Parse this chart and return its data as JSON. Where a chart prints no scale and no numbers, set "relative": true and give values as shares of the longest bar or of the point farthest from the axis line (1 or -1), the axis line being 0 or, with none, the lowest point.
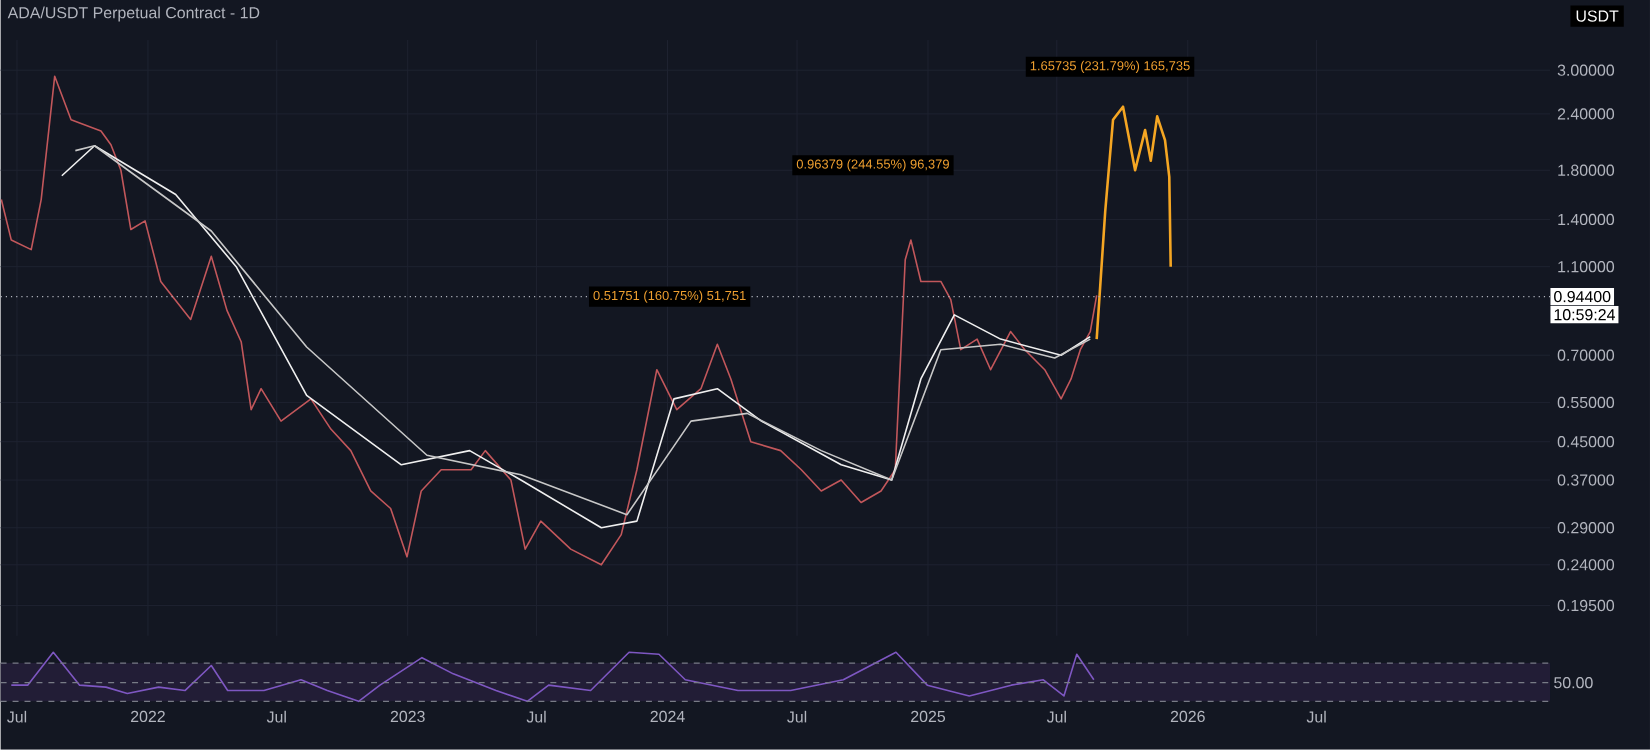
{
  "chart_data": [
    {
      "type": "line",
      "title": "ADA/USDT Perpetual Contract - 1D",
      "ylabel": "USDT",
      "log": true,
      "grid": true,
      "tick_labels": "y",
      "xlim": [
        "2021-06-08",
        "2027-05-25"
      ],
      "ylim": [
        0.167,
        3.5
      ],
      "xticks": [
        {
          "value": "2021-07",
          "label": null
        },
        {
          "value": "2022",
          "label": null
        },
        {
          "value": "2022-07",
          "label": null
        },
        {
          "value": "2023",
          "label": null
        },
        {
          "value": "2023-07",
          "label": null
        },
        {
          "value": "2024",
          "label": null
        },
        {
          "value": "2024-07",
          "label": null
        },
        {
          "value": "2025",
          "label": null
        },
        {
          "value": "2025-07",
          "label": null
        },
        {
          "value": "2026",
          "label": null
        },
        {
          "value": "2026-07",
          "label": null
        }
      ],
      "yticks": [
        {
          "value": 3,
          "label": "3.00000"
        },
        {
          "value": 2.4,
          "label": "2.40000"
        },
        {
          "value": 1.8,
          "label": "1.80000"
        },
        {
          "value": 1.4,
          "label": "1.40000"
        },
        {
          "value": 1.1,
          "label": "1.10000"
        },
        {
          "value": 0.7,
          "label": "0.70000"
        },
        {
          "value": 0.55,
          "label": "0.55000"
        },
        {
          "value": 0.45,
          "label": "0.45000"
        },
        {
          "value": 0.37,
          "label": "0.37000"
        },
        {
          "value": 0.29,
          "label": "0.29000"
        },
        {
          "value": 0.24,
          "label": "0.24000"
        },
        {
          "value": 0.195,
          "label": "0.19500"
        }
      ],
      "series": [
        {
          "color": "#c2575b",
          "x": [
            "2021-06-09",
            "2021-06-23",
            "2021-07-21",
            "2021-08-04",
            "2021-08-23",
            "2021-09-15",
            "2021-10-27",
            "2021-11-10",
            "2021-11-24",
            "2021-12-08",
            "2021-12-28",
            "2022-01-19",
            "2022-03-02",
            "2022-03-31",
            "2022-04-22",
            "2022-05-12",
            "2022-05-26",
            "2022-06-09",
            "2022-07-07",
            "2022-08-18",
            "2022-09-15",
            "2022-10-13",
            "2022-11-10",
            "2022-12-08",
            "2022-12-31",
            "2023-01-20",
            "2023-02-17",
            "2023-03-31",
            "2023-04-20",
            "2023-05-26",
            "2023-06-15",
            "2023-07-07",
            "2023-08-18",
            "2023-09-30",
            "2023-10-28",
            "2023-11-19",
            "2023-12-17",
            "2024-01-14",
            "2024-02-17",
            "2024-03-11",
            "2024-03-30",
            "2024-04-27",
            "2024-06-08",
            "2024-07-07",
            "2024-08-04",
            "2024-09-01",
            "2024-09-29",
            "2024-10-27",
            "2024-11-16",
            "2024-11-30",
            "2024-12-08",
            "2024-12-22",
            "2025-01-19",
            "2025-02-02",
            "2025-02-16",
            "2025-03-11",
            "2025-03-30",
            "2025-04-27",
            "2025-05-17",
            "2025-06-14",
            "2025-07-07",
            "2025-07-21",
            "2025-08-03",
            "2025-08-17",
            "2025-08-26"
          ],
          "values": [
            1.55,
            1.26,
            1.2,
            1.55,
            2.91,
            2.33,
            2.2,
            2.05,
            1.8,
            1.33,
            1.39,
            1.02,
            0.84,
            1.16,
            0.88,
            0.75,
            0.53,
            0.59,
            0.5,
            0.56,
            0.48,
            0.43,
            0.35,
            0.32,
            0.25,
            0.35,
            0.39,
            0.39,
            0.43,
            0.37,
            0.26,
            0.3,
            0.26,
            0.24,
            0.28,
            0.39,
            0.65,
            0.53,
            0.59,
            0.74,
            0.62,
            0.45,
            0.43,
            0.39,
            0.35,
            0.37,
            0.33,
            0.35,
            0.39,
            1.14,
            1.26,
            1.02,
            1.02,
            0.93,
            0.72,
            0.76,
            0.65,
            0.79,
            0.72,
            0.65,
            0.56,
            0.62,
            0.72,
            0.79,
            0.95
          ]
        },
        {
          "color": "#f0f0f0",
          "x": [
            "2021-09-02",
            "2021-10-18",
            "2022-02-09",
            "2022-05-05",
            "2022-08-12",
            "2022-12-23",
            "2023-03-29",
            "2023-06-09",
            "2023-09-30",
            "2023-11-19",
            "2024-01-10",
            "2024-03-11",
            "2024-05-12",
            "2024-09-01",
            "2024-11-11",
            "2024-12-22",
            "2025-02-07",
            "2025-04-13",
            "2025-07-07",
            "2025-08-17"
          ],
          "values": [
            1.75,
            2.04,
            1.59,
            1.1,
            0.57,
            0.4,
            0.43,
            0.37,
            0.29,
            0.3,
            0.56,
            0.59,
            0.5,
            0.4,
            0.37,
            0.62,
            0.86,
            0.76,
            0.7,
            0.77
          ]
        },
        {
          "color": "#c8c8c8",
          "x": [
            "2021-09-21",
            "2021-10-18",
            "2022-03-31",
            "2022-08-12",
            "2023-01-28",
            "2023-06-09",
            "2023-11-05",
            "2024-02-03",
            "2024-04-22",
            "2024-08-04",
            "2024-11-11",
            "2025-01-19",
            "2025-04-13",
            "2025-06-28",
            "2025-08-17"
          ],
          "values": [
            1.99,
            2.04,
            1.32,
            0.73,
            0.42,
            0.38,
            0.31,
            0.5,
            0.52,
            0.43,
            0.37,
            0.72,
            0.74,
            0.69,
            0.76
          ]
        },
        {
          "color": "#f5a623",
          "x": [
            "2025-08-26",
            "2025-09-07",
            "2025-09-18",
            "2025-10-02",
            "2025-10-19",
            "2025-11-02",
            "2025-11-10",
            "2025-11-19",
            "2025-11-30",
            "2025-12-06",
            "2025-12-08"
          ],
          "values": [
            0.76,
            1.46,
            2.33,
            2.49,
            1.8,
            2.21,
            1.89,
            2.37,
            2.1,
            1.74,
            1.1
          ]
        }
      ],
      "ref_lines": [
        {
          "axis": "y",
          "value": 0.944,
          "label": "0.94400",
          "line_style": "dotted",
          "color": "#b2b5be"
        }
      ],
      "annotations": [
        {
          "text": "0.51751 (160.75%) 51,751",
          "x": "2024-01-04",
          "y": 0.944
        },
        "0.96379 (244.55%) 96,379",
        "1.65735 (231.79%) 165,735",
        "10:59:24"
      ]
    },
    {
      "type": "line",
      "relative": true,
      "tick_labels": "x",
      "xlim": [
        "2021-06-08",
        "2027-05-25"
      ],
      "xticks": [
        {
          "value": "2021-07",
          "label": "Jul"
        },
        {
          "value": "2022",
          "label": "2022"
        },
        {
          "value": "2022-07",
          "label": "Jul"
        },
        {
          "value": "2023",
          "label": "2023"
        },
        {
          "value": "2023-07",
          "label": "Jul"
        },
        {
          "value": "2024",
          "label": "2024"
        },
        {
          "value": "2024-07",
          "label": "Jul"
        },
        {
          "value": "2025",
          "label": "2025"
        },
        {
          "value": "2025-07",
          "label": "Jul"
        },
        {
          "value": "2026",
          "label": "2026"
        },
        {
          "value": "2026-07",
          "label": "Jul"
        }
      ],
      "series": [
        {
          "color": "#7e57c2",
          "x": [
            "2021-06-23",
            "2021-07-16",
            "2021-08-21",
            "2021-09-27",
            "2021-11-03",
            "2021-12-03",
            "2022-01-16",
            "2022-02-22",
            "2022-03-31",
            "2022-04-23",
            "2022-06-13",
            "2022-08-04",
            "2022-09-10",
            "2022-10-24",
            "2022-11-23",
            "2023-01-21",
            "2023-03-06",
            "2023-05-05",
            "2023-06-18",
            "2023-07-18",
            "2023-09-15",
            "2023-11-08",
            "2023-12-20",
            "2024-01-26",
            "2024-04-09",
            "2024-06-22",
            "2024-09-04",
            "2024-11-17",
            "2024-12-31",
            "2025-02-28",
            "2025-04-28",
            "2025-06-12",
            "2025-07-11",
            "2025-07-29",
            "2025-08-22"
          ],
          "values": [
            0.33,
            0.33,
            1,
            0.33,
            0.29,
            0.16,
            0.29,
            0.22,
            0.73,
            0.22,
            0.22,
            0.44,
            0.22,
            0,
            0.33,
            0.89,
            0.56,
            0.22,
            0,
            0.33,
            0.22,
            1,
            0.96,
            0.44,
            0.22,
            0.22,
            0.44,
            1,
            0.33,
            0.11,
            0.33,
            0.44,
            0.11,
            0.96,
            0.44
          ]
        }
      ],
      "bands": [
        {
          "axis": "y",
          "from": 0,
          "to": 0.78,
          "color": "#221d36"
        }
      ],
      "ref_lines": [
        {
          "axis": "y",
          "value": 0.38,
          "line_style": "dashed",
          "color": "#787b86"
        },
        {
          "axis": "y",
          "value": 0.78,
          "line_style": "dashed",
          "color": "#787b86"
        },
        {
          "axis": "y",
          "value": 0,
          "line_style": "dashed",
          "color": "#787b86"
        }
      ],
      "annotations": [
        "50.00"
      ]
    }
  ]
}
